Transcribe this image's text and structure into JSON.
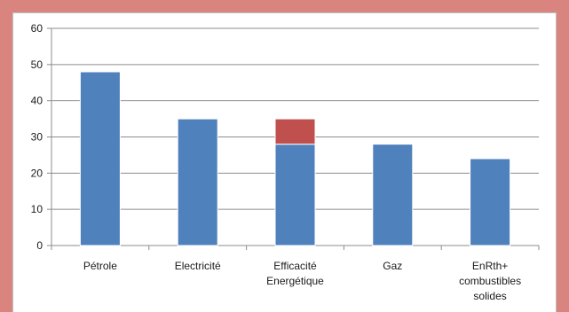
{
  "colors": {
    "background": "#d9847e",
    "series_base": "#4f81bd",
    "series_extra": "#c0504d",
    "grid": "#8c8c8c",
    "axis": "#8c8c8c"
  },
  "chart_data": {
    "type": "bar",
    "stacked": true,
    "categories": [
      [
        "Pétrole"
      ],
      [
        "Electricité"
      ],
      [
        "Efficacité",
        "Energétique"
      ],
      [
        "Gaz"
      ],
      [
        "EnRth+",
        "combustibles",
        "solides"
      ]
    ],
    "series": [
      {
        "values": [
          48,
          35,
          28,
          28,
          24
        ]
      },
      {
        "values": [
          0,
          0,
          7,
          0,
          0
        ]
      }
    ],
    "xlabel": "",
    "ylabel": "",
    "ylim": [
      0,
      60
    ],
    "yticks": [
      0,
      10,
      20,
      30,
      40,
      50,
      60
    ],
    "grid": true,
    "legend": "none"
  }
}
